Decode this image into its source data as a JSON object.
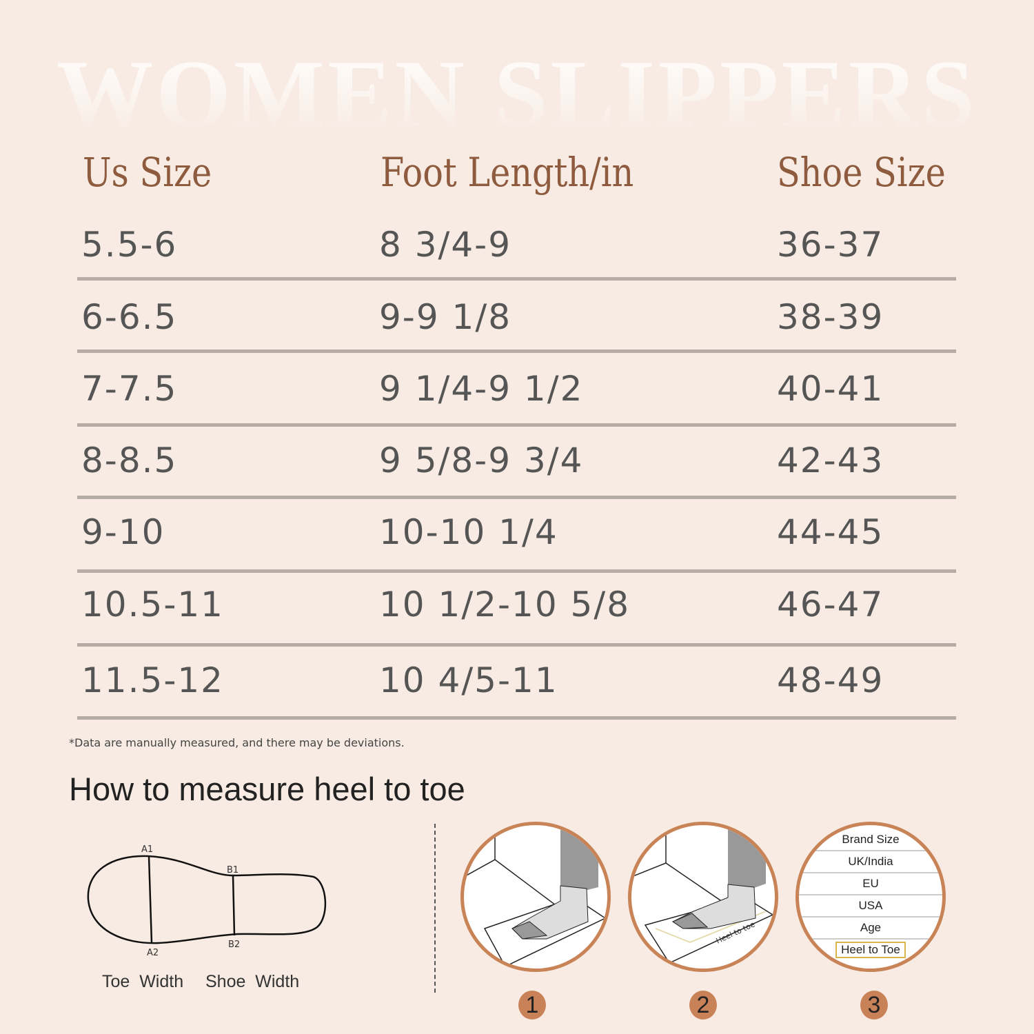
{
  "watermark": "WOMEN SLIPPERS",
  "headers": [
    "Us Size",
    "Foot Length/in",
    "Shoe Size"
  ],
  "rows": [
    [
      "5.5-6",
      "8 3/4-9",
      "36-37"
    ],
    [
      "6-6.5",
      "9-9 1/8",
      "38-39"
    ],
    [
      "7-7.5",
      "9 1/4-9 1/2",
      "40-41"
    ],
    [
      "8-8.5",
      "9 5/8-9 3/4",
      "42-43"
    ],
    [
      "9-10",
      "10-10 1/4",
      "44-45"
    ],
    [
      "10.5-11",
      "10 1/2-10 5/8",
      "46-47"
    ],
    [
      "11.5-12",
      "10 4/5-11",
      "48-49"
    ]
  ],
  "note": "*Data are manually measured, and there may be deviations.",
  "how_title": "How to measure heel to toe",
  "diagram": {
    "a1": "A1",
    "a2": "A2",
    "b1": "B1",
    "b2": "B2",
    "toe_width": "Toe  Width",
    "shoe_width": "Shoe  Width"
  },
  "step2_label": "Heel to toe",
  "step3_rows": [
    "Brand Size",
    "UK/India",
    "EU",
    "USA",
    "Age",
    "Heel to Toe"
  ],
  "steps": [
    "1",
    "2",
    "3"
  ],
  "colors": {
    "background": "#f7ebe3",
    "header": "#8e5b3e",
    "accent": "#c98258",
    "rule": "#b4aca5"
  }
}
